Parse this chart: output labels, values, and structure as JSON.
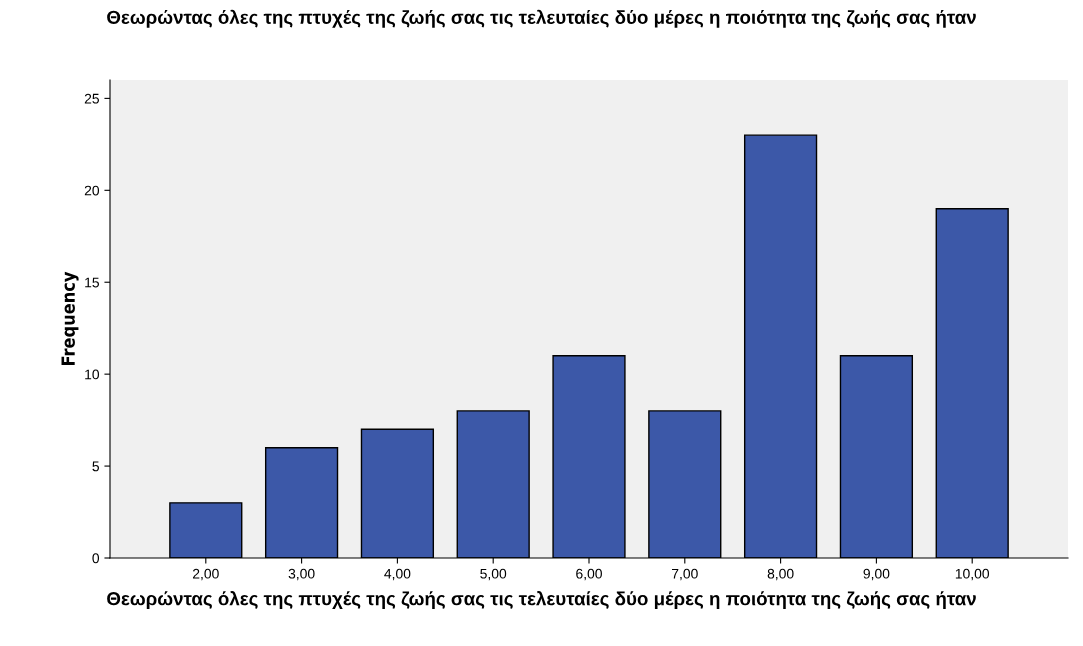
{
  "chart_data": {
    "type": "bar",
    "title": "Θεωρώντας όλες της πτυχές της ζωής σας τις τελευταίες δύο μέρες η ποιότητα της ζωής σας ήταν",
    "xlabel": "Θεωρώντας όλες της πτυχές της ζωής σας τις τελευταίες δύο μέρες η ποιότητα της ζωής σας ήταν",
    "ylabel": "Frequency",
    "categories": [
      "2,00",
      "3,00",
      "4,00",
      "5,00",
      "6,00",
      "7,00",
      "8,00",
      "9,00",
      "10,00"
    ],
    "values": [
      3,
      6,
      7,
      8,
      11,
      8,
      23,
      11,
      19
    ],
    "color": "#3c58a8",
    "ylim": [
      0,
      26
    ],
    "yticks": [
      0,
      5,
      10,
      15,
      20,
      25
    ],
    "grid": false
  }
}
